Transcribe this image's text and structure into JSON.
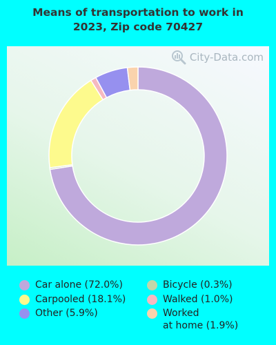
{
  "title_line1": "Means of transportation to work in",
  "title_line2": "2023, Zip code 70427",
  "watermark_text": "City-Data.com",
  "colors": {
    "background": "#00ffff",
    "title": "#333333"
  },
  "chart_data": {
    "type": "pie",
    "donut": true,
    "title": "Means of transportation to work in 2023, Zip code 70427",
    "series": [
      {
        "name": "Car alone (72.0%)",
        "value": 72.0,
        "color": "#bfa9dc"
      },
      {
        "name": "Bicycle (0.3%)",
        "value": 0.3,
        "color": "#c3d6a9"
      },
      {
        "name": "Carpooled (18.1%)",
        "value": 18.1,
        "color": "#fdfa8d"
      },
      {
        "name": "Walked (1.0%)",
        "value": 1.0,
        "color": "#f6b9c0"
      },
      {
        "name": "Other (5.9%)",
        "value": 5.9,
        "color": "#9690ef"
      },
      {
        "name": "Worked\nat home (1.9%)",
        "value": 1.9,
        "color": "#fad3ad"
      }
    ],
    "legend_placement": "bottom"
  }
}
